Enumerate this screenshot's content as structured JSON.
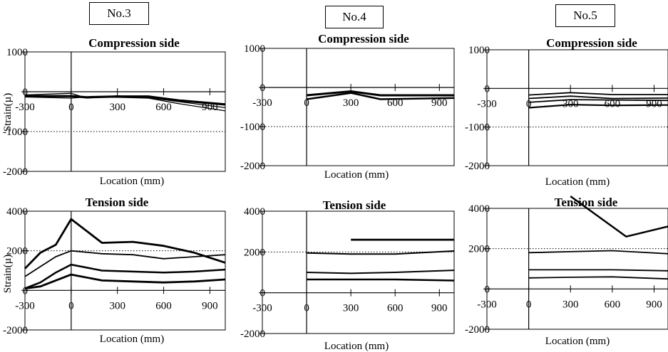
{
  "chart_data": [
    {
      "type": "line",
      "specimen": "No.3",
      "title": "Compression side",
      "ylabel": "Strain(µ)",
      "xlabel": "Location (mm)",
      "xlim": [
        -300,
        1000
      ],
      "ylim": [
        -2000,
        1000
      ],
      "yticks": [
        1000,
        0,
        -1000,
        -2000
      ],
      "ytick_labels": [
        "1000",
        "0",
        "-1000",
        "-2000"
      ],
      "xticks": [
        -300,
        0,
        300,
        600,
        900
      ],
      "xtick_labels": [
        "-300",
        "0",
        "300",
        "600",
        "900"
      ],
      "dotted_y": [
        -1000
      ],
      "series": [
        {
          "x": [
            -300,
            0,
            100,
            300,
            500,
            700,
            1000
          ],
          "y": [
            -80,
            -40,
            -160,
            -100,
            -150,
            -250,
            -400
          ],
          "width": 1.3
        },
        {
          "x": [
            -300,
            0,
            100,
            300,
            500,
            700,
            1000
          ],
          "y": [
            -110,
            -110,
            -140,
            -120,
            -120,
            -220,
            -320
          ],
          "width": 3.2
        },
        {
          "x": [
            -300,
            0,
            100,
            300,
            500,
            700,
            1000
          ],
          "y": [
            -130,
            -160,
            -130,
            -140,
            -160,
            -300,
            -480
          ],
          "width": 1.3
        }
      ]
    },
    {
      "type": "line",
      "specimen": "No.4",
      "title": "Compression side",
      "ylabel": "",
      "xlabel": "Location (mm)",
      "xlim": [
        -300,
        1000
      ],
      "ylim": [
        -2000,
        1000
      ],
      "yticks": [
        1000,
        0,
        -1000,
        -2000
      ],
      "ytick_labels": [
        "1000",
        "0",
        "-1000",
        "-2000"
      ],
      "xticks": [
        -300,
        0,
        300,
        600,
        900
      ],
      "xtick_labels": [
        "-300",
        "0",
        "300",
        "600",
        "900"
      ],
      "dotted_y": [
        -1000
      ],
      "series": [
        {
          "x": [
            0,
            300,
            500,
            1000
          ],
          "y": [
            -200,
            -100,
            -200,
            -200
          ],
          "width": 3
        },
        {
          "x": [
            0,
            300,
            500,
            1000
          ],
          "y": [
            -300,
            -140,
            -300,
            -270
          ],
          "width": 2.5
        }
      ]
    },
    {
      "type": "line",
      "specimen": "No.5",
      "title": "Compression side",
      "ylabel": "",
      "xlabel": "Location (mm)",
      "xlim": [
        -300,
        1000
      ],
      "ylim": [
        -2000,
        1000
      ],
      "yticks": [
        1000,
        0,
        -1000,
        -2000
      ],
      "ytick_labels": [
        "1000",
        "0",
        "-1000",
        "-2000"
      ],
      "xticks": [
        -300,
        0,
        300,
        600,
        900
      ],
      "xtick_labels": [
        "-300",
        "0",
        "300",
        "600",
        "900"
      ],
      "dotted_y": [
        -1000
      ],
      "series": [
        {
          "x": [
            0,
            300,
            600,
            1000
          ],
          "y": [
            -170,
            -110,
            -160,
            -160
          ],
          "width": 1.8
        },
        {
          "x": [
            0,
            300,
            600,
            1000
          ],
          "y": [
            -260,
            -200,
            -260,
            -250
          ],
          "width": 1.8
        },
        {
          "x": [
            0,
            300,
            600,
            1000
          ],
          "y": [
            -360,
            -290,
            -300,
            -310
          ],
          "width": 1.8
        },
        {
          "x": [
            0,
            300,
            600,
            1000
          ],
          "y": [
            -500,
            -420,
            -440,
            -430
          ],
          "width": 2.2
        }
      ]
    },
    {
      "type": "line",
      "specimen": "No.3",
      "title": "Tension side",
      "ylabel": "Strain(µ)",
      "xlabel": "Location (mm)",
      "xlim": [
        -300,
        1000
      ],
      "ylim": [
        -2000,
        4000
      ],
      "yticks": [
        4000,
        2000,
        0,
        -2000
      ],
      "ytick_labels": [
        "4000",
        "2000",
        "0",
        "-2000"
      ],
      "xticks": [
        -300,
        0,
        300,
        600,
        900
      ],
      "xtick_labels": [
        "-300",
        "0",
        "300",
        "600",
        "900"
      ],
      "dotted_y": [
        2000
      ],
      "series": [
        {
          "x": [
            -300,
            -200,
            -100,
            0,
            100,
            200,
            400,
            600,
            800,
            1000
          ],
          "y": [
            1100,
            1900,
            2300,
            3600,
            3000,
            2400,
            2450,
            2250,
            1900,
            1400
          ],
          "width": 2.8
        },
        {
          "x": [
            -300,
            -100,
            0,
            200,
            400,
            600,
            800,
            1000
          ],
          "y": [
            700,
            1700,
            2000,
            1850,
            1800,
            1600,
            1700,
            1800
          ],
          "width": 1.8
        },
        {
          "x": [
            -300,
            -200,
            -100,
            0,
            200,
            400,
            600,
            800,
            1000
          ],
          "y": [
            100,
            400,
            900,
            1300,
            1000,
            950,
            900,
            950,
            1050
          ],
          "width": 2.5
        },
        {
          "x": [
            -300,
            -200,
            -100,
            0,
            200,
            400,
            600,
            800,
            1000
          ],
          "y": [
            100,
            200,
            500,
            800,
            500,
            450,
            400,
            450,
            550
          ],
          "width": 2.8
        }
      ]
    },
    {
      "type": "line",
      "specimen": "No.4",
      "title": "Tension side",
      "ylabel": "",
      "xlabel": "Location (mm)",
      "xlim": [
        -300,
        1000
      ],
      "ylim": [
        -2000,
        4000
      ],
      "yticks": [
        4000,
        2000,
        0,
        -2000
      ],
      "ytick_labels": [
        "4000",
        "2000",
        "0",
        "-2000"
      ],
      "xticks": [
        -300,
        0,
        300,
        600,
        900
      ],
      "xtick_labels": [
        "-300",
        "0",
        "300",
        "600",
        "900"
      ],
      "dotted_y": [
        2000
      ],
      "series": [
        {
          "x": [
            300,
            1000
          ],
          "y": [
            2600,
            2600
          ],
          "width": 2.8
        },
        {
          "x": [
            0,
            300,
            600,
            1000
          ],
          "y": [
            1950,
            1900,
            1900,
            2050
          ],
          "width": 2
        },
        {
          "x": [
            0,
            300,
            600,
            1000
          ],
          "y": [
            1000,
            950,
            1000,
            1100
          ],
          "width": 2
        },
        {
          "x": [
            0,
            300,
            600,
            1000
          ],
          "y": [
            650,
            650,
            650,
            600
          ],
          "width": 2.5
        }
      ]
    },
    {
      "type": "line",
      "specimen": "No.5",
      "title": "Tension side",
      "ylabel": "",
      "xlabel": "Location (mm)",
      "xlim": [
        -300,
        1000
      ],
      "ylim": [
        -2000,
        4000
      ],
      "yticks": [
        4000,
        2000,
        0,
        -2000
      ],
      "ytick_labels": [
        "4000",
        "2000",
        "0",
        "-2000"
      ],
      "xticks": [
        -300,
        0,
        300,
        600,
        900
      ],
      "xtick_labels": [
        "-300",
        "0",
        "300",
        "600",
        "900"
      ],
      "dotted_y": [
        2000
      ],
      "series": [
        {
          "x": [
            300,
            700,
            1000
          ],
          "y": [
            4600,
            2600,
            3100
          ],
          "width": 2.5
        },
        {
          "x": [
            0,
            300,
            600,
            1000
          ],
          "y": [
            1800,
            1850,
            1900,
            1750
          ],
          "width": 1.8
        },
        {
          "x": [
            0,
            300,
            600,
            1000
          ],
          "y": [
            950,
            950,
            950,
            900
          ],
          "width": 1.8
        },
        {
          "x": [
            0,
            300,
            600,
            1000
          ],
          "y": [
            550,
            580,
            600,
            500
          ],
          "width": 1.8
        }
      ]
    }
  ]
}
